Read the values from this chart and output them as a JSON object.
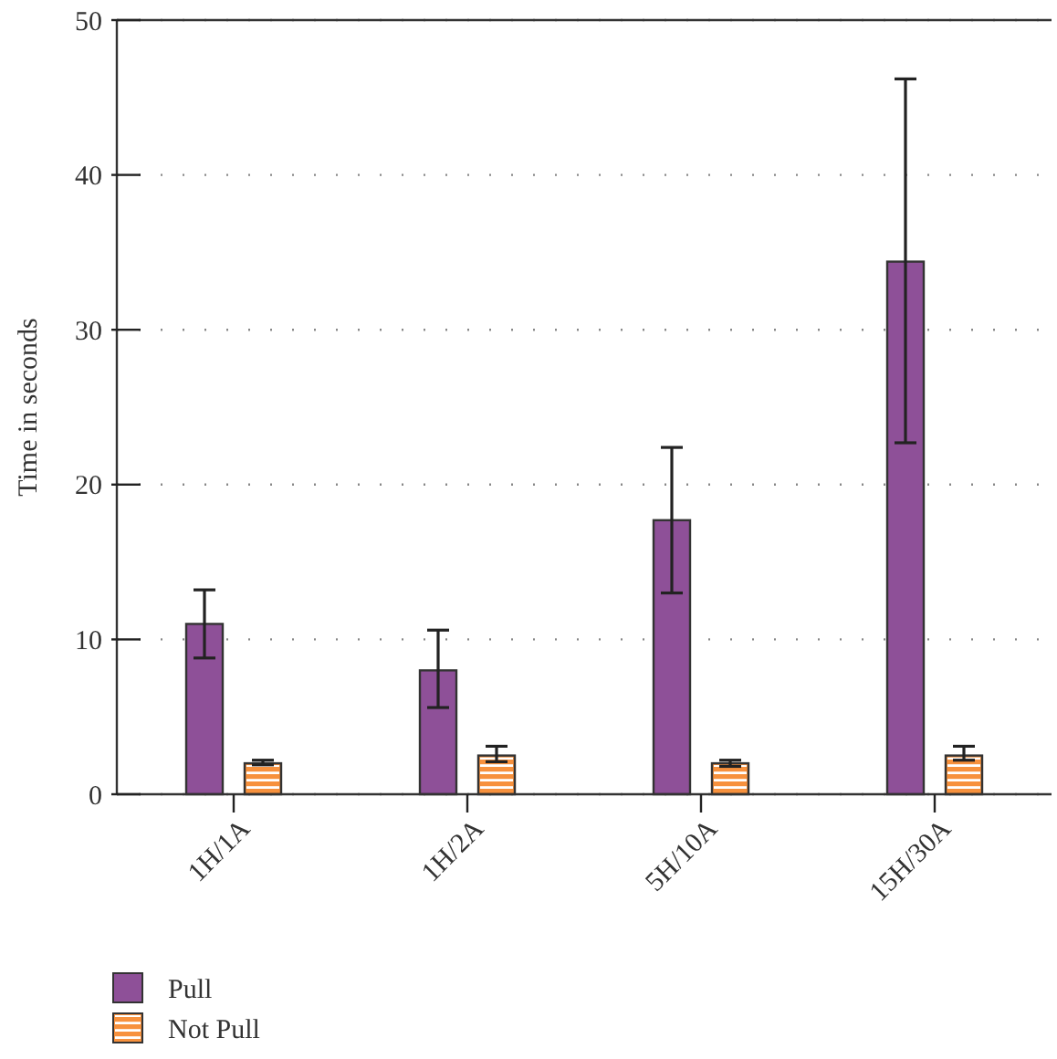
{
  "chart_data": {
    "type": "bar",
    "ylabel": "Time in seconds",
    "categories": [
      "1H/1A",
      "1H/2A",
      "5H/10A",
      "15H/30A"
    ],
    "series": [
      {
        "name": "Pull",
        "color": "#8e5098",
        "values": [
          11.0,
          8.0,
          17.7,
          34.4
        ],
        "errors": [
          [
            8.8,
            13.2
          ],
          [
            5.6,
            10.6
          ],
          [
            13.0,
            22.4
          ],
          [
            22.7,
            46.2
          ]
        ]
      },
      {
        "name": "Not Pull",
        "color": "#f7913d",
        "values": [
          2.0,
          2.5,
          2.0,
          2.5
        ],
        "errors": [
          [
            1.9,
            2.2
          ],
          [
            2.1,
            3.1
          ],
          [
            1.8,
            2.2
          ],
          [
            2.2,
            3.1
          ]
        ]
      }
    ],
    "ylim": [
      0,
      50
    ],
    "yticks": [
      0,
      10,
      20,
      30,
      40,
      50
    ],
    "grid": "y",
    "legend": "bottom left"
  }
}
